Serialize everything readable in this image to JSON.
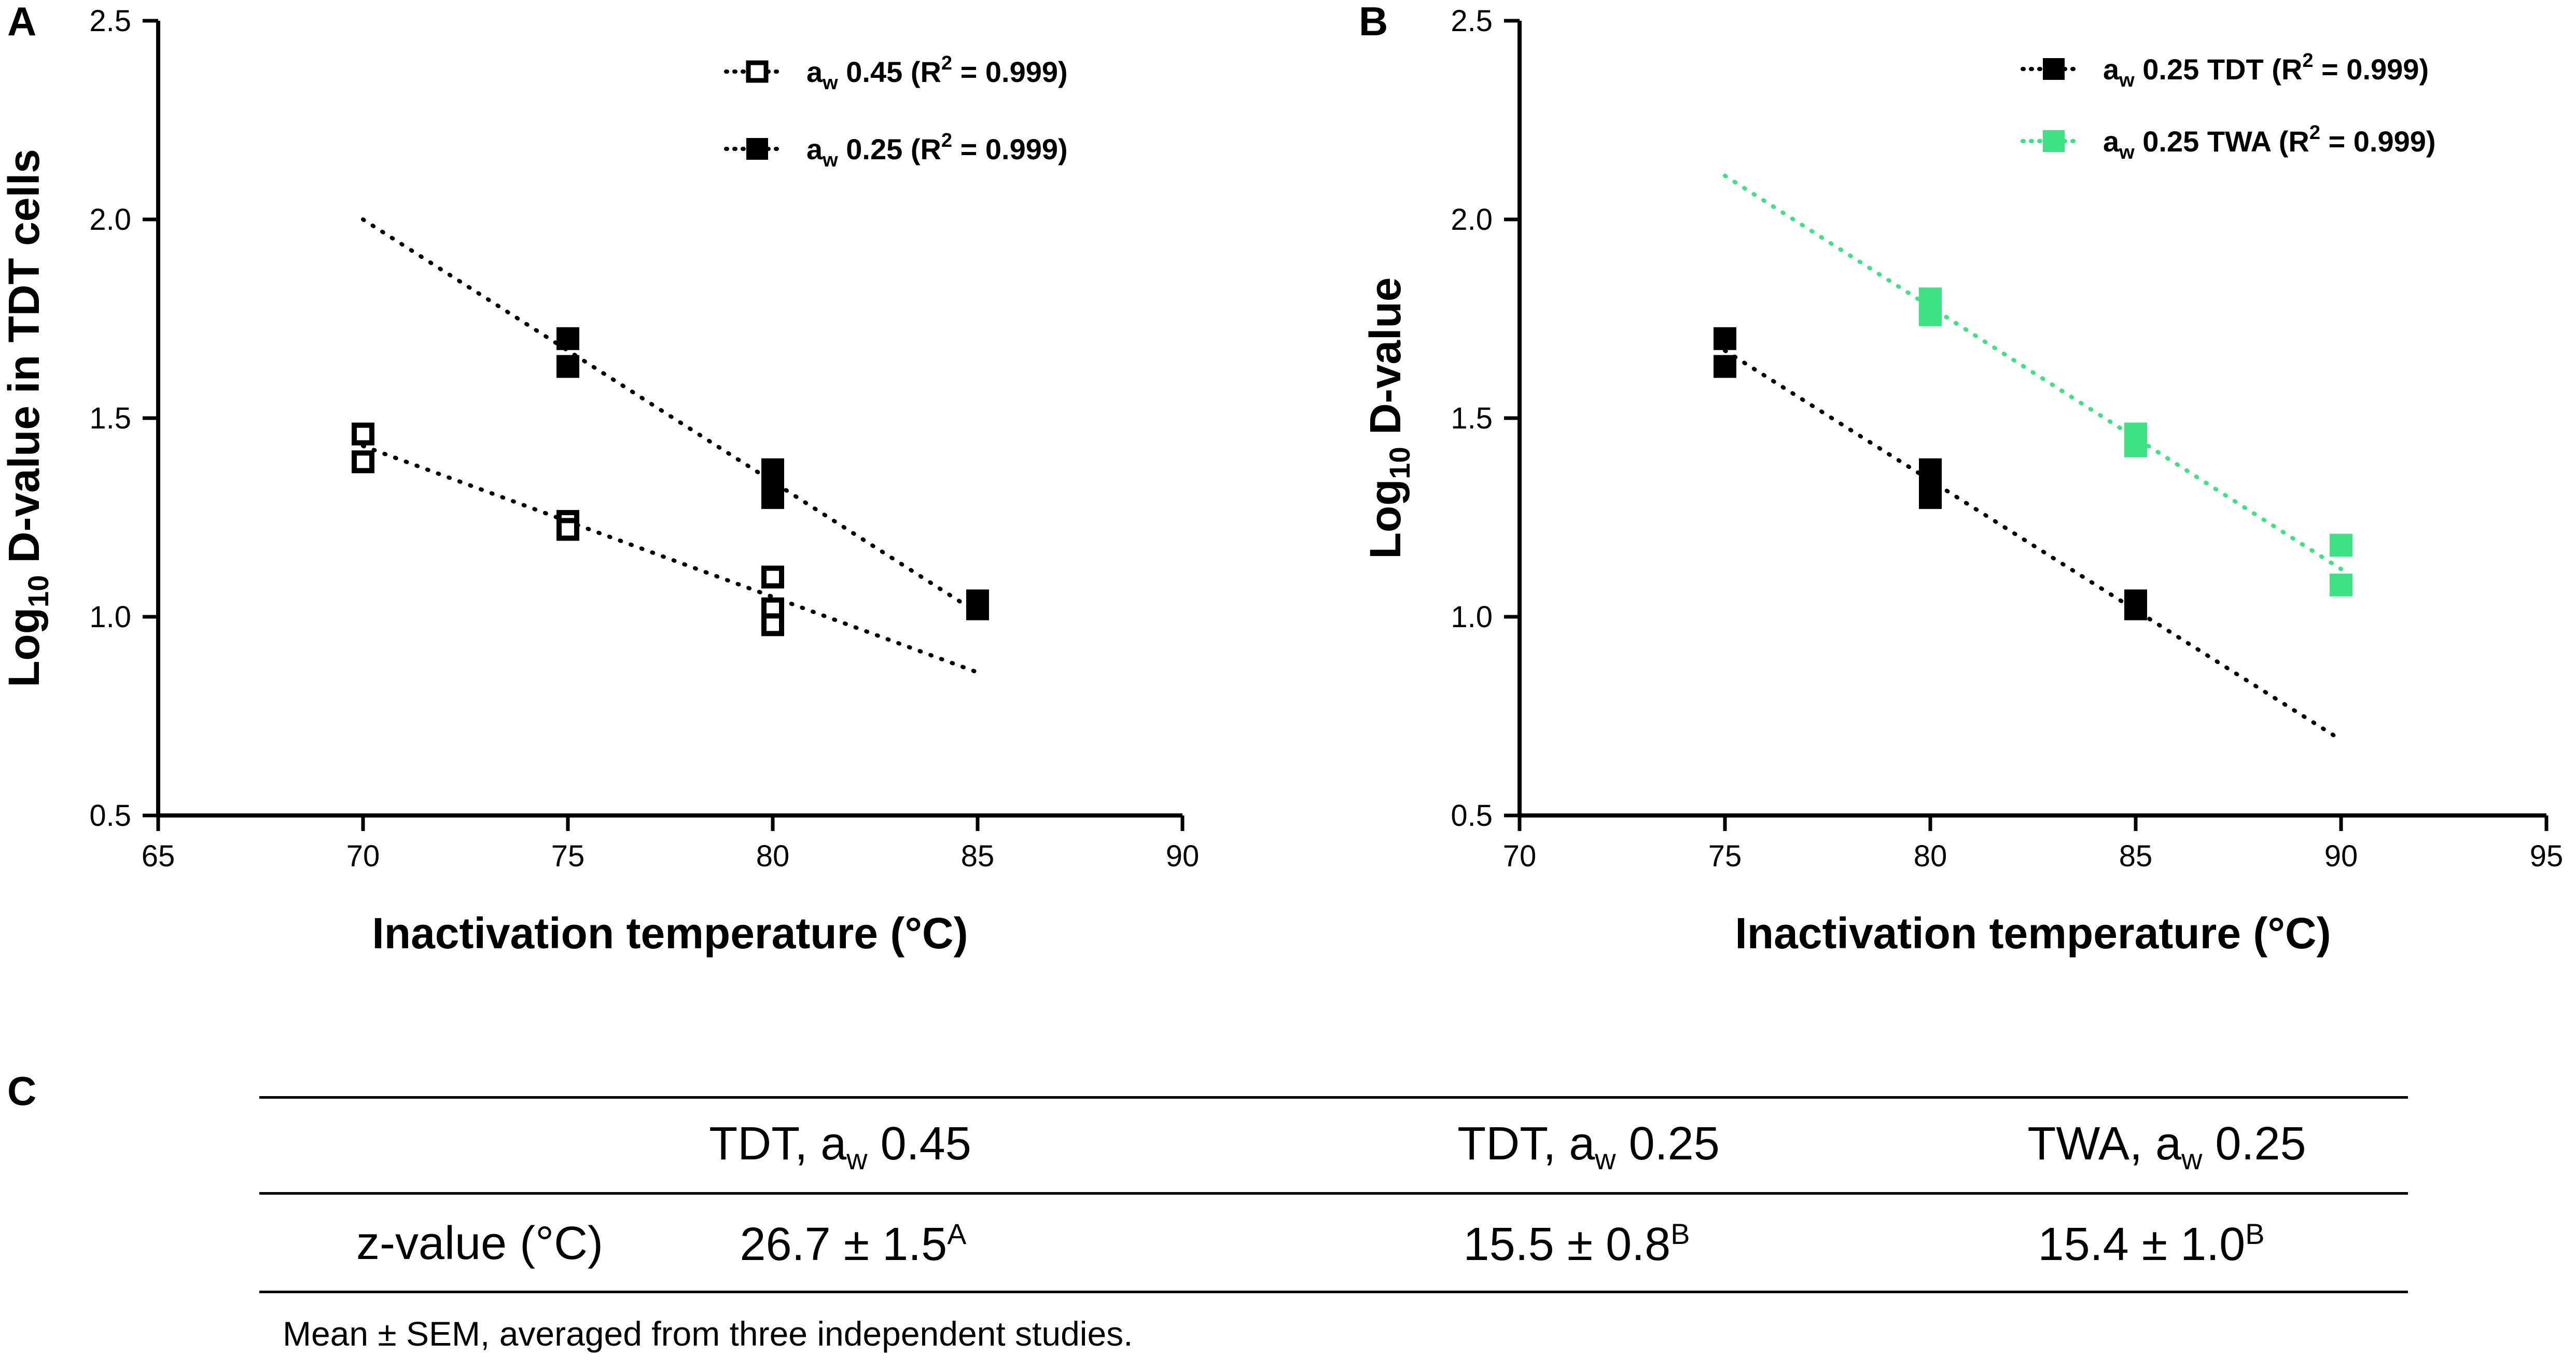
{
  "colors": {
    "black": "#000000",
    "green": "#3de383",
    "white": "#ffffff"
  },
  "chart_data": [
    {
      "panel": "A",
      "type": "scatter",
      "title": "",
      "xlabel": "Inactivation temperature (°C)",
      "ylabel": "Log10 D-value in TDT cells",
      "ylabel_parts": {
        "pre": "Log",
        "sub": "10",
        "post": " D-value in TDT cells"
      },
      "xlim": [
        65,
        90
      ],
      "ylim": [
        0.5,
        2.5
      ],
      "xticks": [
        65,
        70,
        75,
        80,
        85,
        90
      ],
      "yticks": [
        0.5,
        1.0,
        1.5,
        2.0,
        2.5
      ],
      "x_tick_labels": [
        "65",
        "70",
        "75",
        "80",
        "85",
        "90"
      ],
      "y_tick_labels": [
        "0.5",
        "1.0",
        "1.5",
        "2.0",
        "2.5"
      ],
      "legend_position": "top-right",
      "series": [
        {
          "name": "aw 0.45 (R2 = 0.999)",
          "label_parts": {
            "a": "a",
            "sub": "w",
            "mid": " 0.45 (R",
            "sup": "2",
            "end": " = 0.999)"
          },
          "marker": "open-square",
          "color": "#000000",
          "x": [
            70,
            70,
            75,
            75,
            80,
            80,
            80
          ],
          "y": [
            1.46,
            1.39,
            1.24,
            1.22,
            1.1,
            1.02,
            0.98
          ],
          "fit": {
            "x": [
              70,
              85
            ],
            "y": [
              1.43,
              0.86
            ]
          }
        },
        {
          "name": "aw 0.25 (R2 = 0.999)",
          "label_parts": {
            "a": "a",
            "sub": "w",
            "mid": " 0.25 (R",
            "sup": "2",
            "end": " = 0.999)"
          },
          "marker": "filled-square",
          "color": "#000000",
          "x": [
            75,
            75,
            80,
            80,
            80,
            85,
            85
          ],
          "y": [
            1.7,
            1.63,
            1.37,
            1.34,
            1.3,
            1.04,
            1.02
          ],
          "fit": {
            "x": [
              70,
              85
            ],
            "y": [
              2.0,
              1.01
            ]
          }
        }
      ]
    },
    {
      "panel": "B",
      "type": "scatter",
      "title": "",
      "xlabel": "Inactivation temperature (°C)",
      "ylabel": "Log10 D-value",
      "ylabel_parts": {
        "pre": "Log",
        "sub": "10",
        "post": " D-value"
      },
      "xlim": [
        70,
        95
      ],
      "ylim": [
        0.5,
        2.5
      ],
      "xticks": [
        70,
        75,
        80,
        85,
        90,
        95
      ],
      "yticks": [
        0.5,
        1.0,
        1.5,
        2.0,
        2.5
      ],
      "x_tick_labels": [
        "70",
        "75",
        "80",
        "85",
        "90",
        "95"
      ],
      "y_tick_labels": [
        "0.5",
        "1.0",
        "1.5",
        "2.0",
        "2.5"
      ],
      "legend_position": "top-right",
      "series": [
        {
          "name": "aw 0.25 TDT (R2 = 0.999)",
          "label_parts": {
            "a": "a",
            "sub": "w",
            "mid": " 0.25 TDT (R",
            "sup": "2",
            "end": " = 0.999)"
          },
          "marker": "filled-square",
          "color": "#000000",
          "x": [
            75,
            75,
            80,
            80,
            80,
            85,
            85
          ],
          "y": [
            1.7,
            1.63,
            1.37,
            1.34,
            1.3,
            1.04,
            1.02
          ],
          "fit": {
            "x": [
              75,
              90
            ],
            "y": [
              1.67,
              0.69
            ]
          }
        },
        {
          "name": "aw 0.25 TWA (R2 = 0.999)",
          "label_parts": {
            "a": "a",
            "sub": "w",
            "mid": " 0.25 TWA (R",
            "sup": "2",
            "end": " = 0.999)"
          },
          "marker": "filled-square",
          "color": "#3de383",
          "x": [
            80,
            80,
            85,
            85,
            90,
            90
          ],
          "y": [
            1.8,
            1.76,
            1.46,
            1.43,
            1.18,
            1.08
          ],
          "fit": {
            "x": [
              75,
              90
            ],
            "y": [
              2.11,
              1.12
            ]
          }
        }
      ]
    }
  ],
  "table": {
    "panel": "C",
    "headers": [
      {
        "pre": "TDT, a",
        "sub": "w",
        "post": " 0.45"
      },
      {
        "pre": "TDT, a",
        "sub": "w",
        "post": " 0.25"
      },
      {
        "pre": "TWA, a",
        "sub": "w",
        "post": " 0.25"
      }
    ],
    "row_label": "z-value (°C)",
    "values": [
      {
        "value": "26.7 ± 1.5",
        "sup": "A"
      },
      {
        "value": "15.5 ± 0.8",
        "sup": "B"
      },
      {
        "value": "15.4 ± 1.0",
        "sup": "B"
      }
    ],
    "note": "Mean ± SEM, averaged from three independent studies."
  }
}
